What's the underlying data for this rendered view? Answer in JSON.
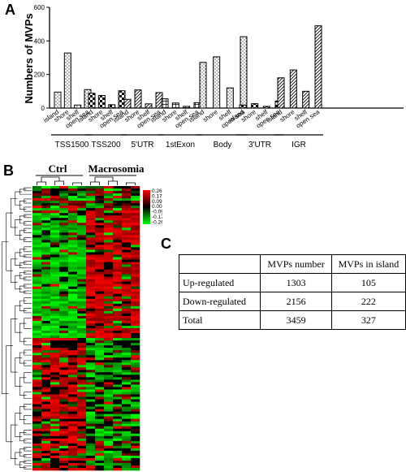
{
  "panels": {
    "a": "A",
    "b": "B",
    "c": "C"
  },
  "chart_data": [
    {
      "type": "bar",
      "ylabel": "Numbers of MVPs",
      "ylim": [
        0,
        600
      ],
      "yticks": [
        "0",
        "200",
        "400",
        "600"
      ],
      "bar_labels": [
        "island",
        "shore",
        "shelf",
        "open sea"
      ],
      "colors": {
        "bar_fill": "#ffffff",
        "bar_stroke": "#000000"
      },
      "groups": [
        {
          "name": "TSS1500",
          "values": [
            95,
            328,
            18,
            110
          ]
        },
        {
          "name": "TSS200",
          "values": [
            88,
            75,
            20,
            103
          ]
        },
        {
          "name": "5'UTR",
          "values": [
            52,
            108,
            25,
            92
          ]
        },
        {
          "name": "1stExon",
          "values": [
            55,
            30,
            10,
            32
          ]
        },
        {
          "name": "Body",
          "values": [
            272,
            305,
            120,
            425
          ]
        },
        {
          "name": "3'UTR",
          "values": [
            18,
            26,
            10,
            42
          ]
        },
        {
          "name": "IGR",
          "values": [
            180,
            227,
            100,
            490
          ]
        }
      ]
    },
    {
      "type": "heatmap",
      "group_labels": [
        "Ctrl",
        "Macrosomia"
      ],
      "color_scale": {
        "ticks": [
          "0.26",
          "0.17",
          "0.09",
          "0.00",
          "-0.09",
          "-0.17",
          "-0.26"
        ],
        "colors": {
          "high": "#ff0000",
          "mid": "#000000",
          "low": "#00ff00"
        }
      }
    },
    {
      "type": "table",
      "columns": [
        "",
        "MVPs number",
        "MVPs in island"
      ],
      "rows": [
        [
          "Up-regulated",
          "1303",
          "105"
        ],
        [
          "Down-regulated",
          "2156",
          "222"
        ],
        [
          "Total",
          "3459",
          "327"
        ]
      ]
    }
  ]
}
